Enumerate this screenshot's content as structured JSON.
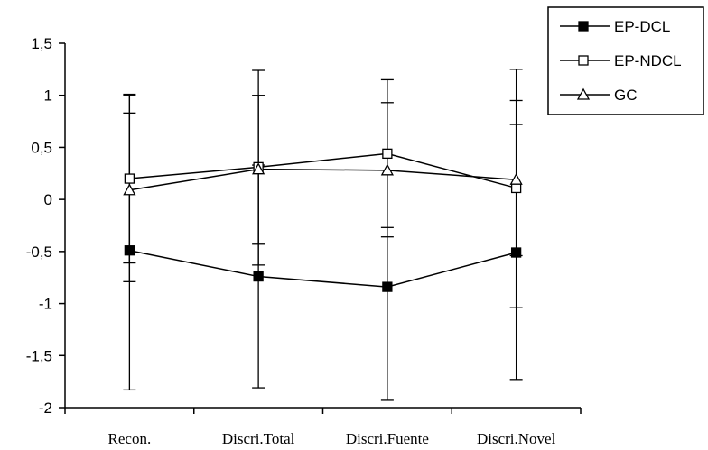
{
  "chart_data": {
    "type": "line",
    "categories": [
      "Recon.",
      "Discri.Total",
      "Discri.Fuente",
      "Discri.Novel"
    ],
    "ylim": [
      -2,
      1.5
    ],
    "yticks": [
      "1,5",
      "1",
      "0,5",
      "0",
      "-0,5",
      "-1",
      "-1,5",
      "-2"
    ],
    "yticks_values": [
      1.5,
      1,
      0.5,
      0,
      -0.5,
      -1,
      -1.5,
      -2
    ],
    "grid": false,
    "legend_placement": "top-right",
    "series": [
      {
        "name": "EP-DCL",
        "marker": "filled-square",
        "values": [
          -0.49,
          -0.74,
          -0.84,
          -0.51
        ],
        "error_low": [
          -1.83,
          -1.81,
          -1.93,
          -1.73
        ],
        "error_high": [
          1.0,
          0.33,
          0.28,
          0.72
        ]
      },
      {
        "name": "EP-NDCL",
        "marker": "open-square",
        "values": [
          0.2,
          0.31,
          0.44,
          0.11
        ],
        "error_low": [
          -0.79,
          -0.63,
          -0.36,
          -1.04
        ],
        "error_high": [
          1.01,
          1.24,
          1.15,
          1.25
        ]
      },
      {
        "name": "GC",
        "marker": "open-triangle",
        "values": [
          0.09,
          0.29,
          0.28,
          0.19
        ],
        "error_low": [
          -0.61,
          -0.43,
          -0.27,
          -0.54
        ],
        "error_high": [
          0.83,
          1.0,
          0.93,
          0.95
        ]
      }
    ]
  }
}
